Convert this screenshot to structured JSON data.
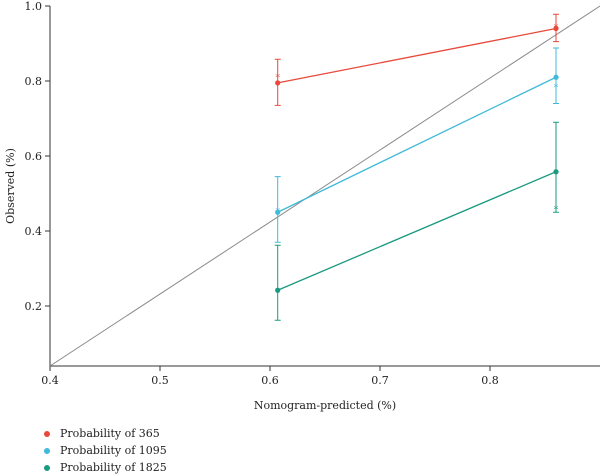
{
  "chart_data": {
    "type": "line",
    "title": "",
    "xlabel": "Nomogram-predicted (%)",
    "ylabel": "Observed (%)",
    "xlim": [
      0.4,
      0.9
    ],
    "ylim": [
      0.04,
      1.0
    ],
    "x_ticks": [
      0.4,
      0.5,
      0.6,
      0.7,
      0.8
    ],
    "y_ticks": [
      0.2,
      0.4,
      0.6,
      0.8,
      1.0
    ],
    "x_tick_labels": [
      "0.4",
      "0.5",
      "0.6",
      "0.7",
      "0.8"
    ],
    "y_tick_labels": [
      "0.2",
      "0.4",
      "0.6",
      "0.8",
      "1.0"
    ],
    "reference_line": {
      "from": [
        0.4,
        0.04
      ],
      "to": [
        0.9,
        1.0
      ],
      "color": "#8a8a8a"
    },
    "legend_placement": "bottom-left",
    "series": [
      {
        "name": "Probability of 365",
        "color": "#e8493b",
        "points": [
          {
            "x": 0.607,
            "y": 0.795,
            "lo": 0.735,
            "hi": 0.858,
            "star": 0.812
          },
          {
            "x": 0.86,
            "y": 0.94,
            "lo": 0.905,
            "hi": 0.978,
            "star": 0.945
          }
        ]
      },
      {
        "name": "Probability of 1095",
        "color": "#3fbad9",
        "points": [
          {
            "x": 0.607,
            "y": 0.45,
            "lo": 0.37,
            "hi": 0.545,
            "star": 0.455
          },
          {
            "x": 0.86,
            "y": 0.81,
            "lo": 0.74,
            "hi": 0.888,
            "star": 0.785
          }
        ]
      },
      {
        "name": "Probability of 1825",
        "color": "#1a9a80",
        "points": [
          {
            "x": 0.607,
            "y": 0.242,
            "lo": 0.162,
            "hi": 0.362,
            "star": 0.242
          },
          {
            "x": 0.86,
            "y": 0.558,
            "lo": 0.45,
            "hi": 0.69,
            "star": 0.46
          }
        ]
      }
    ]
  },
  "legend": {
    "items": [
      {
        "label": "Probability of 365",
        "color": "#e8493b"
      },
      {
        "label": "Probability of 1095",
        "color": "#3fbad9"
      },
      {
        "label": "Probability of 1825",
        "color": "#1a9a80"
      }
    ]
  }
}
